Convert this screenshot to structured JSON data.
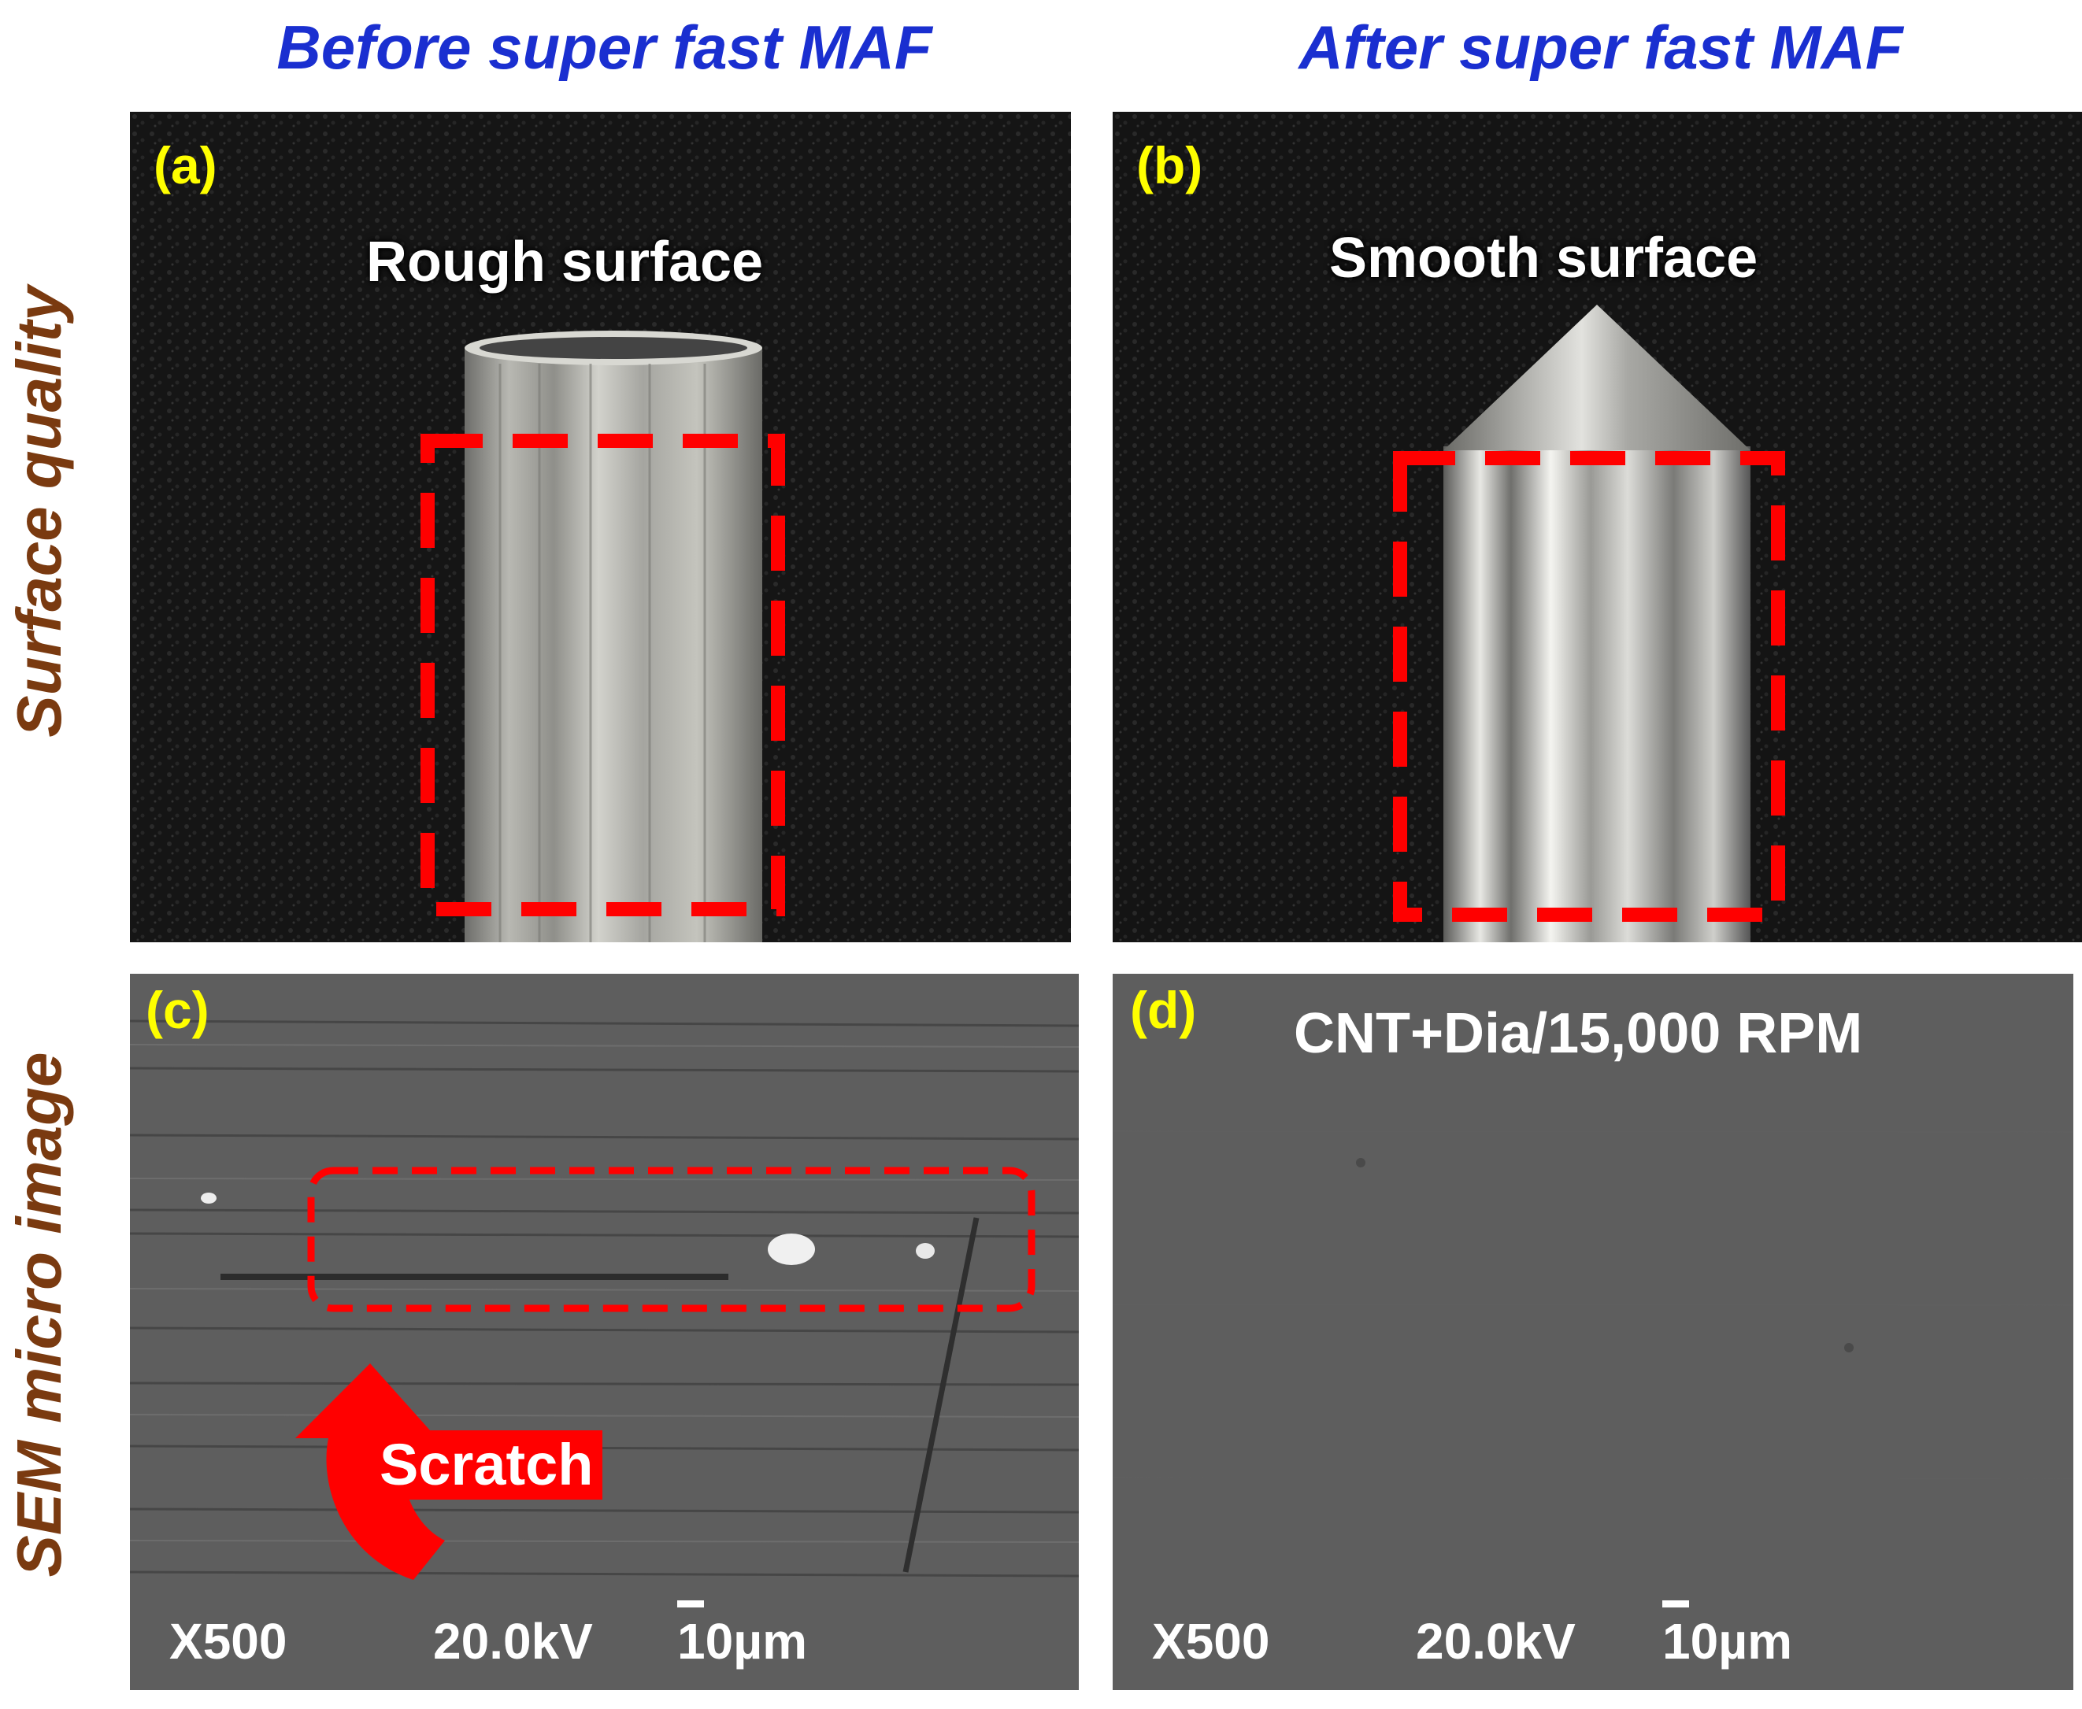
{
  "columns": {
    "before": "Before super fast MAF",
    "after": "After super fast MAF"
  },
  "rows": {
    "surface": "Surface quality",
    "sem": "SEM micro image"
  },
  "panels": {
    "a": {
      "label": "(a)",
      "caption": "Rough surface"
    },
    "b": {
      "label": "(b)",
      "caption": "Smooth surface"
    },
    "c": {
      "label": "(c)",
      "annotation": "Scratch",
      "magnification": "X500",
      "voltage": "20.0kV",
      "scale": "10µm"
    },
    "d": {
      "label": "(d)",
      "caption": "CNT+Dia/15,000 RPM",
      "magnification": "X500",
      "voltage": "20.0kV",
      "scale": "10µm"
    }
  },
  "colors": {
    "column_title": "#1a2fd0",
    "row_title": "#7a3a10",
    "panel_label": "#ffff00",
    "highlight_box": "#ff0000",
    "photo_background": "#141414",
    "sem_background": "#5e5e5e"
  }
}
